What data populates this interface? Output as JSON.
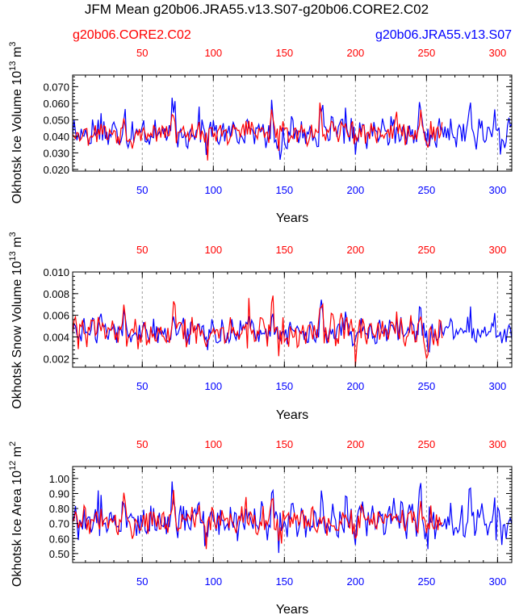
{
  "title": "JFM Mean g20b06.JRA55.v13.S07-g20b06.CORE2.C02",
  "legend": {
    "red_label": "g20b06.CORE2.C02",
    "blue_label": "g20b06.JRA55.v13.S07"
  },
  "colors": {
    "red": "#ff0000",
    "blue": "#0000ff",
    "axis": "#000000",
    "grid": "#999999"
  },
  "chart_data": [
    {
      "type": "line",
      "name": "ice-volume",
      "ylabel": "Okhotsk Ice Volume 10^13 m^3",
      "ylabel_main": "Okhotsk Ice Volume 10",
      "ylabel_exp": "13",
      "ylabel_unit": "m",
      "ylabel_unit_exp": "3",
      "xlabel": "Years",
      "xlim": [
        1,
        310
      ],
      "ylim": [
        0.019,
        0.077
      ],
      "yticks": [
        0.02,
        0.03,
        0.04,
        0.05,
        0.06,
        0.07
      ],
      "ytick_labels": [
        "0.020",
        "0.030",
        "0.040",
        "0.050",
        "0.060",
        "0.070"
      ],
      "xticks": [
        50,
        100,
        150,
        200,
        250,
        300
      ],
      "xtick_labels": [
        "50",
        "100",
        "150",
        "200",
        "250",
        "300"
      ],
      "base": 0.042,
      "amp_blue": 0.009,
      "amp_red": 0.007,
      "series": [
        {
          "name": "g20b06.CORE2.C02",
          "color": "#ff0000",
          "years": 261
        },
        {
          "name": "g20b06.JRA55.v13.S07",
          "color": "#0000ff",
          "years": 310
        }
      ]
    },
    {
      "type": "line",
      "name": "snow-volume",
      "ylabel": "Okhotsk Snow Volume 10^13 m^3",
      "ylabel_main": "Okhotsk Snow Volume 10",
      "ylabel_exp": "13",
      "ylabel_unit": "m",
      "ylabel_unit_exp": "3",
      "xlabel": "Years",
      "xlim": [
        1,
        310
      ],
      "ylim": [
        0.0012,
        0.01
      ],
      "yticks": [
        0.002,
        0.004,
        0.006,
        0.008,
        0.01
      ],
      "ytick_labels": [
        "0.002",
        "0.004",
        "0.006",
        "0.008",
        "0.010"
      ],
      "xticks": [
        50,
        100,
        150,
        200,
        250,
        300
      ],
      "xtick_labels": [
        "50",
        "100",
        "150",
        "200",
        "250",
        "300"
      ],
      "base": 0.0045,
      "amp_blue": 0.0012,
      "amp_red": 0.0015,
      "series": [
        {
          "name": "g20b06.CORE2.C02",
          "color": "#ff0000",
          "years": 261
        },
        {
          "name": "g20b06.JRA55.v13.S07",
          "color": "#0000ff",
          "years": 310
        }
      ]
    },
    {
      "type": "line",
      "name": "ice-area",
      "ylabel": "Okhotsk Ice Area 10^12 m^2",
      "ylabel_main": "Okhotsk Ice Area 10",
      "ylabel_exp": "12",
      "ylabel_unit": "m",
      "ylabel_unit_exp": "2",
      "xlabel": "Years",
      "xlim": [
        1,
        310
      ],
      "ylim": [
        0.44,
        1.08
      ],
      "yticks": [
        0.5,
        0.6,
        0.7,
        0.8,
        0.9,
        1.0
      ],
      "ytick_labels": [
        "0.50",
        "0.60",
        "0.70",
        "0.80",
        "0.90",
        "1.00"
      ],
      "xticks": [
        50,
        100,
        150,
        200,
        250,
        300
      ],
      "xtick_labels": [
        "50",
        "100",
        "150",
        "200",
        "250",
        "300"
      ],
      "base": 0.72,
      "amp_blue": 0.12,
      "amp_red": 0.09,
      "series": [
        {
          "name": "g20b06.CORE2.C02",
          "color": "#ff0000",
          "years": 261
        },
        {
          "name": "g20b06.JRA55.v13.S07",
          "color": "#0000ff",
          "years": 310
        }
      ]
    }
  ]
}
